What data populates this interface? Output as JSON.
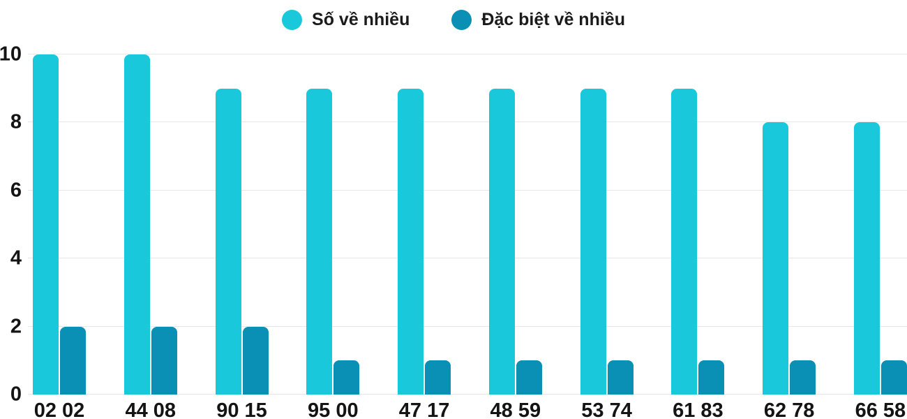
{
  "chart_data": {
    "type": "bar",
    "title": "",
    "xlabel": "",
    "ylabel": "",
    "categories": [
      "02 02",
      "44 08",
      "90 15",
      "95 00",
      "47 17",
      "48 59",
      "53 74",
      "61 83",
      "62 78",
      "66 58"
    ],
    "series": [
      {
        "name": "Số về nhiều",
        "color": "#1ac8dc",
        "values": [
          10,
          10,
          9,
          9,
          9,
          9,
          9,
          9,
          8,
          8
        ]
      },
      {
        "name": "Đặc biệt về nhiều",
        "color": "#0990b4",
        "values": [
          2,
          2,
          2,
          1,
          1,
          1,
          1,
          1,
          1,
          1
        ]
      }
    ],
    "ylim": [
      0,
      10
    ],
    "yticks": [
      0,
      2,
      4,
      6,
      8,
      10
    ],
    "grid": true,
    "legend_position": "top-center"
  },
  "colors": {
    "background": "#ffffff",
    "gridline": "#e7e7e7",
    "text": "#141414",
    "series_primary": "#1ac8dc",
    "series_secondary": "#0990b4"
  }
}
